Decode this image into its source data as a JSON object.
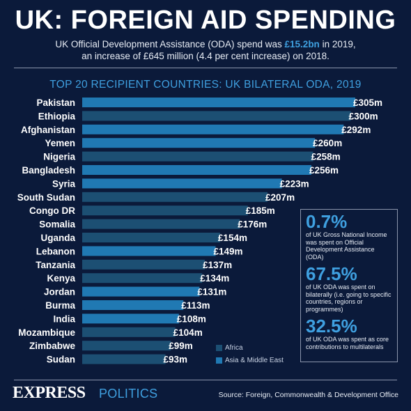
{
  "title": "UK: FOREIGN AID SPENDING",
  "intro": {
    "pre": "UK Official Development Assistance (ODA) spend was ",
    "highlight": "£15.2bn",
    "post": " in 2019,",
    "line2": "an increase of £645 million (4.4 per cent increase) on 2018."
  },
  "colors": {
    "africa": "#1c4f73",
    "asia_middle_east": "#2079b3",
    "accent": "#3fa0e0",
    "background": "#0b1a3a"
  },
  "chart_data": {
    "type": "bar",
    "orientation": "horizontal",
    "title": "TOP 20 RECIPIENT COUNTRIES: UK BILATERAL ODA, 2019",
    "unit": "£m",
    "categories": [
      "Pakistan",
      "Ethiopia",
      "Afghanistan",
      "Yemen",
      "Nigeria",
      "Bangladesh",
      "Syria",
      "South Sudan",
      "Congo DR",
      "Somalia",
      "Uganda",
      "Lebanon",
      "Tanzania",
      "Kenya",
      "Jordan",
      "Burma",
      "India",
      "Mozambique",
      "Zimbabwe",
      "Sudan"
    ],
    "values": [
      305,
      300,
      292,
      260,
      258,
      256,
      223,
      207,
      185,
      176,
      154,
      149,
      137,
      134,
      131,
      113,
      108,
      104,
      99,
      93
    ],
    "value_labels": [
      "£305m",
      "£300m",
      "£292m",
      "£260m",
      "£258m",
      "£256m",
      "£223m",
      "£207m",
      "£185m",
      "£176m",
      "£154m",
      "£149m",
      "£137m",
      "£134m",
      "£131m",
      "£113m",
      "£108m",
      "£104m",
      "£99m",
      "£93m"
    ],
    "regions": [
      "asia_middle_east",
      "africa",
      "asia_middle_east",
      "asia_middle_east",
      "africa",
      "asia_middle_east",
      "asia_middle_east",
      "africa",
      "africa",
      "africa",
      "africa",
      "asia_middle_east",
      "africa",
      "africa",
      "asia_middle_east",
      "asia_middle_east",
      "asia_middle_east",
      "africa",
      "africa",
      "africa"
    ],
    "legend": [
      {
        "name": "Africa",
        "key": "africa"
      },
      {
        "name": "Asia & Middle East",
        "key": "asia_middle_east"
      }
    ],
    "legend_position": "bottom-right",
    "grid": false
  },
  "stats": [
    {
      "value": "0.7%",
      "text": "of UK Gross National Income was spent on Official Development Assistance (ODA)"
    },
    {
      "value": "67.5%",
      "text": "of UK ODA was spent on bilaterally (i.e. going to specific countries, regions or programmes)"
    },
    {
      "value": "32.5%",
      "text": "of UK ODA was spent as core contributions to multilaterals"
    }
  ],
  "footer": {
    "brand": "EXPRESS",
    "section": "POLITICS",
    "source": "Source: Foreign, Commonwealth & Development Office"
  }
}
